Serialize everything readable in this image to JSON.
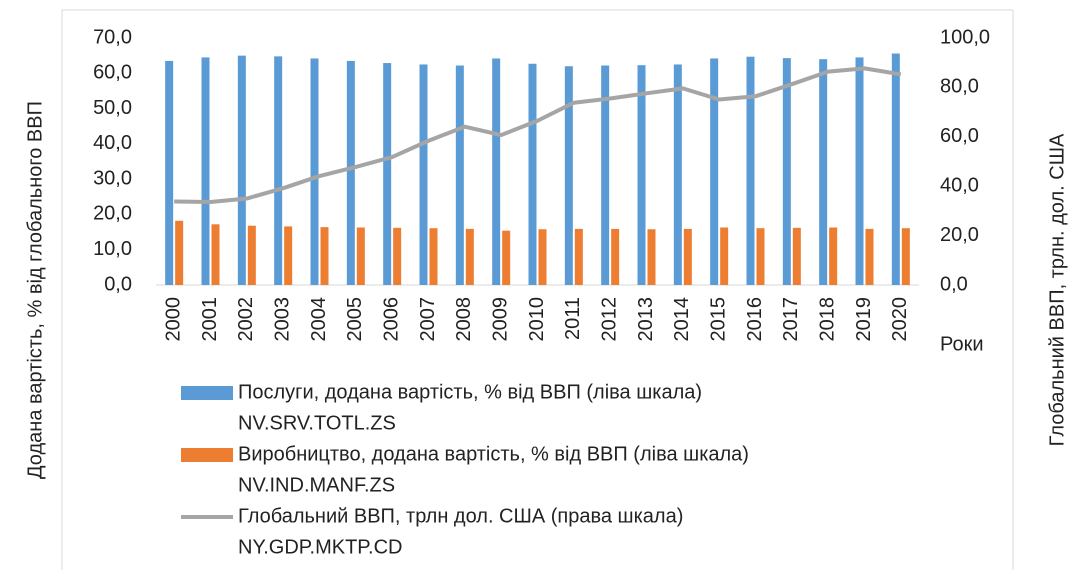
{
  "chart_data": {
    "type": "bar_line",
    "ylabel": "Додана вартість, % від глобального ВВП",
    "y2label": "Глобальний ВВП, трлн. дол. США",
    "xlabel": "Роки",
    "categories": [
      "2000",
      "2001",
      "2002",
      "2003",
      "2004",
      "2005",
      "2006",
      "2007",
      "2008",
      "2009",
      "2010",
      "2011",
      "2012",
      "2013",
      "2014",
      "2015",
      "2016",
      "2017",
      "2018",
      "2019",
      "2020"
    ],
    "series": [
      {
        "name": "Послуги, додана вартість, % від ВВП (ліва шкала)",
        "code": "NV.SRV.TOTL.ZS",
        "color": "#5b9bd5",
        "kind": "bar",
        "values": [
          63.5,
          64.5,
          65.0,
          64.8,
          64.2,
          63.5,
          62.9,
          62.5,
          62.2,
          64.2,
          62.7,
          62.0,
          62.2,
          62.3,
          62.5,
          64.2,
          64.7,
          64.3,
          64.0,
          64.5,
          65.6
        ]
      },
      {
        "name": "Виробництво, додана вартість, % від ВВП (ліва шкала)",
        "code": "NV.IND.MANF.ZS",
        "color": "#ed7d31",
        "kind": "bar",
        "values": [
          18.2,
          17.2,
          16.8,
          16.6,
          16.4,
          16.3,
          16.2,
          16.1,
          15.9,
          15.4,
          15.8,
          15.9,
          15.9,
          15.8,
          15.9,
          16.3,
          16.1,
          16.2,
          16.3,
          15.9,
          16.1
        ]
      },
      {
        "name": "Глобальний ВВП, трлн дол. США (права шкала)",
        "code": "NY.GDP.MKTP.CD",
        "color": "#a5a5a5",
        "kind": "line",
        "axis": "y2",
        "values": [
          33.8,
          33.6,
          35.0,
          39.2,
          44.1,
          47.8,
          51.8,
          58.4,
          64.1,
          60.7,
          66.5,
          73.8,
          75.5,
          77.6,
          79.6,
          75.1,
          76.4,
          81.3,
          86.4,
          87.7,
          85.3
        ]
      }
    ],
    "ylim": [
      0,
      70
    ],
    "yticks": [
      {
        "value": 0,
        "label": "0,0"
      },
      {
        "value": 10,
        "label": "10,0"
      },
      {
        "value": 20,
        "label": "20,0"
      },
      {
        "value": 30,
        "label": "30,0"
      },
      {
        "value": 40,
        "label": "40,0"
      },
      {
        "value": 50,
        "label": "50,0"
      },
      {
        "value": 60,
        "label": "60,0"
      },
      {
        "value": 70,
        "label": "70,0"
      }
    ],
    "y2lim": [
      0,
      100
    ],
    "y2ticks": [
      {
        "value": 0,
        "label": "0,0"
      },
      {
        "value": 20,
        "label": "20,0"
      },
      {
        "value": 40,
        "label": "40,0"
      },
      {
        "value": 60,
        "label": "60,0"
      },
      {
        "value": 80,
        "label": "80,0"
      },
      {
        "value": 100,
        "label": "100,0"
      }
    ],
    "grid": false
  }
}
